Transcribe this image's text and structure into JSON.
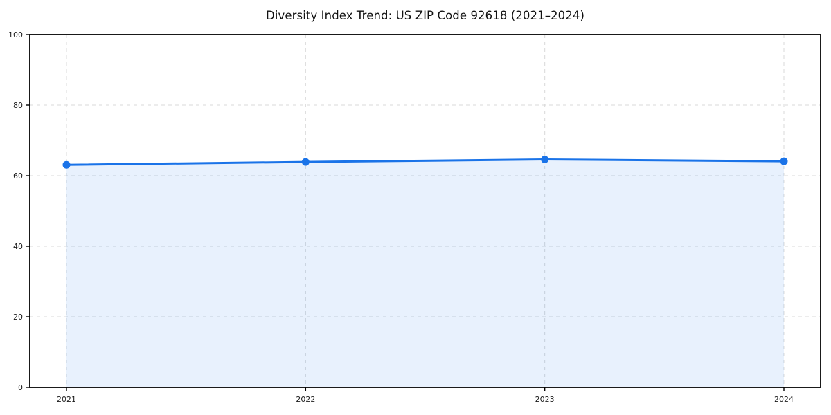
{
  "chart_data": {
    "type": "area",
    "title": "Diversity Index Trend: US ZIP Code 92618 (2021–2024)",
    "categories": [
      "2021",
      "2022",
      "2023",
      "2024"
    ],
    "series": [
      {
        "name": "Diversity Index",
        "values": [
          63.1,
          63.9,
          64.6,
          64.1
        ]
      }
    ],
    "xlabel": "",
    "ylabel": "",
    "ylim": [
      0,
      100
    ],
    "yticks": [
      0,
      20,
      40,
      60,
      80,
      100
    ],
    "grid": "dashed, horizontal at y-ticks and vertical at each year",
    "legend": false,
    "colors": {
      "line": "#1a73e8",
      "marker": "#1a73e8",
      "fill": "rgba(26,115,232,0.10)",
      "grid": "#d9d9d9",
      "axis": "#000000",
      "tick_label": "#1a1a1a",
      "background": "#ffffff"
    }
  }
}
